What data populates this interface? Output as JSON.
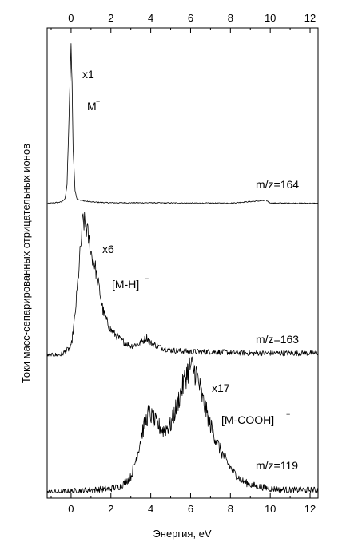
{
  "chart_data": {
    "type": "line",
    "xlabel": "Энергия, eV",
    "ylabel": "Токи масс-сепарированных отрицательных ионов",
    "xlim": [
      -1.2,
      12.4
    ],
    "x_ticks": [
      0,
      2,
      4,
      6,
      8,
      10,
      12
    ],
    "series": [
      {
        "name": "m/z=164",
        "ion": "M",
        "multiplier": "x1",
        "x": [
          -1.2,
          -0.5,
          -0.3,
          -0.2,
          -0.1,
          0.0,
          0.05,
          0.1,
          0.2,
          0.3,
          0.5,
          1.0,
          2.0,
          4.0,
          6.0,
          8.0,
          9.8,
          10.0,
          12.4
        ],
        "y": [
          0.0,
          0.01,
          0.03,
          0.12,
          0.55,
          1.0,
          0.75,
          0.35,
          0.08,
          0.03,
          0.02,
          0.01,
          0.005,
          0.005,
          0.003,
          0.003,
          0.02,
          0.003,
          0.002
        ]
      },
      {
        "name": "m/z=163",
        "ion": "M-H",
        "multiplier": "x6",
        "x": [
          -1.2,
          -0.5,
          0.0,
          0.2,
          0.4,
          0.6,
          0.8,
          1.0,
          1.2,
          1.4,
          1.6,
          1.8,
          2.0,
          2.5,
          3.0,
          3.5,
          3.8,
          4.0,
          4.5,
          5.0,
          6.0,
          7.0,
          8.0,
          9.0,
          10.0,
          11.0,
          12.4
        ],
        "y": [
          0.0,
          0.01,
          0.06,
          0.28,
          0.62,
          0.95,
          0.88,
          0.72,
          0.63,
          0.48,
          0.32,
          0.24,
          0.18,
          0.11,
          0.07,
          0.09,
          0.13,
          0.09,
          0.06,
          0.04,
          0.03,
          0.03,
          0.025,
          0.02,
          0.02,
          0.02,
          0.02
        ]
      },
      {
        "name": "m/z=119",
        "ion": "M-COOH",
        "multiplier": "x17",
        "x": [
          -1.2,
          0.0,
          1.0,
          2.0,
          2.5,
          3.0,
          3.3,
          3.6,
          3.9,
          4.2,
          4.6,
          5.0,
          5.4,
          5.8,
          6.0,
          6.3,
          6.6,
          7.0,
          7.4,
          7.8,
          8.2,
          8.6,
          9.0,
          10.0,
          11.0,
          12.4
        ],
        "y": [
          0.0,
          0.01,
          0.02,
          0.03,
          0.05,
          0.12,
          0.28,
          0.48,
          0.62,
          0.55,
          0.48,
          0.52,
          0.72,
          0.92,
          0.98,
          0.92,
          0.72,
          0.52,
          0.36,
          0.24,
          0.15,
          0.09,
          0.06,
          0.03,
          0.02,
          0.02
        ]
      }
    ],
    "annotations": {
      "x1": "x1",
      "x6": "x6",
      "x17": "x17",
      "ion1": "M",
      "ion2": "[M-H]",
      "ion3": "[M-COOH]",
      "charge": "−",
      "mz1": "m/z=164",
      "mz2": "m/z=163",
      "mz3": "m/z=119"
    }
  }
}
